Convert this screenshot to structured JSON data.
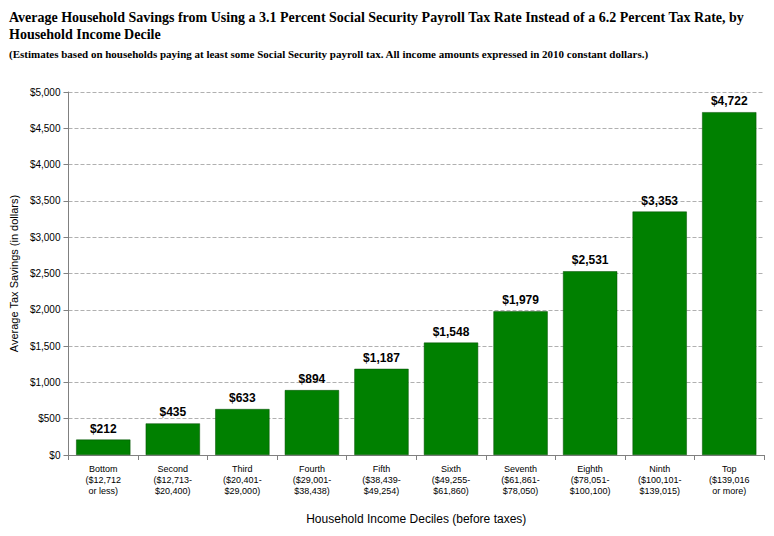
{
  "chart_data": {
    "type": "bar",
    "title": "Average Household Savings from Using a 3.1 Percent Social Security Payroll Tax Rate Instead of a 6.2 Percent Tax Rate, by Household Income Decile",
    "subtitle": "(Estimates based on households paying at least some Social Security payroll tax. All income amounts expressed in 2010 constant dollars.)",
    "x_label": "Household Income Deciles (before taxes)",
    "y_label": "Average Tax Savings (in dollars)",
    "categories": [
      "Bottom\n($12,712\nor less)",
      "Second\n($12,713-\n$20,400)",
      "Third\n($20,401-\n$29,000)",
      "Fourth\n($29,001-\n$38,438)",
      "Fifth\n($38,439-\n$49,254)",
      "Sixth\n($49,255-\n$61,860)",
      "Seventh\n($61,861-\n$78,050)",
      "Eighth\n($78,051-\n$100,100)",
      "Ninth\n($100,101-\n$139,015)",
      "Top\n($139,016\nor more)"
    ],
    "values": [
      212,
      435,
      633,
      894,
      1187,
      1548,
      1979,
      2531,
      3353,
      4722
    ],
    "value_labels": [
      "$212",
      "$435",
      "$633",
      "$894",
      "$1,187",
      "$1,548",
      "$1,979",
      "$2,531",
      "$3,353",
      "$4,722"
    ],
    "color": "#008000",
    "ylim": [
      0,
      5000
    ],
    "yticks": [
      {
        "value": 0,
        "label": "$0"
      },
      {
        "value": 500,
        "label": "$500"
      },
      {
        "value": 1000,
        "label": "$1,000"
      },
      {
        "value": 1500,
        "label": "$1,500"
      },
      {
        "value": 2000,
        "label": "$2,000"
      },
      {
        "value": 2500,
        "label": "$2,500"
      },
      {
        "value": 3000,
        "label": "$3,000"
      },
      {
        "value": 3500,
        "label": "$3,500"
      },
      {
        "value": 4000,
        "label": "$4,000"
      },
      {
        "value": 4500,
        "label": "$4,500"
      },
      {
        "value": 5000,
        "label": "$5,000"
      }
    ],
    "grid": true,
    "data_labels": true
  }
}
